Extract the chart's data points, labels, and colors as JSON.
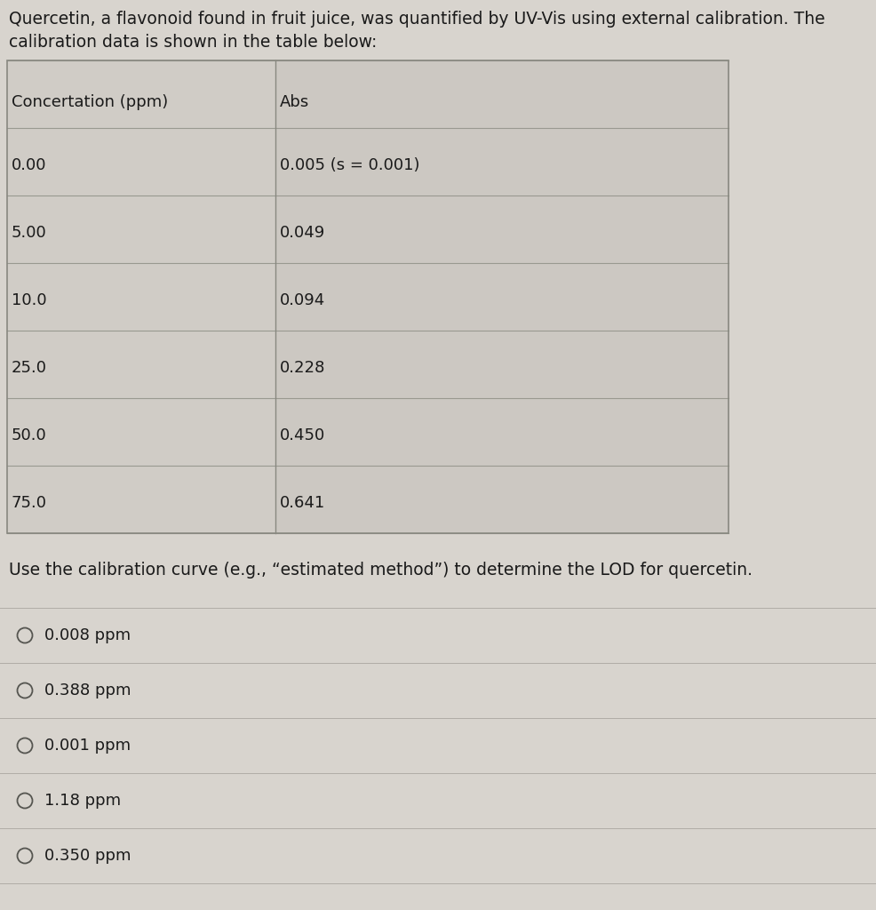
{
  "intro_text_line1": "Quercetin, a flavonoid found in fruit juice, was quantified by UV-Vis using external calibration. The",
  "intro_text_line2": "calibration data is shown in the table below:",
  "table_header": [
    "Concertation (ppm)",
    "Abs"
  ],
  "table_rows": [
    [
      "0.00",
      "0.005 (s = 0.001)"
    ],
    [
      "5.00",
      "0.049"
    ],
    [
      "10.0",
      "0.094"
    ],
    [
      "25.0",
      "0.228"
    ],
    [
      "50.0",
      "0.450"
    ],
    [
      "75.0",
      "0.641"
    ]
  ],
  "question_text": "Use the calibration curve (e.g., “estimated method”) to determine the LOD for quercetin.",
  "options": [
    "0.008 ppm",
    "0.388 ppm",
    "0.001 ppm",
    "1.18 ppm",
    "0.350 ppm"
  ],
  "bg_color": "#d8d4ce",
  "table_col1_bg": "#d0ccc6",
  "table_col2_bg": "#ccc8c2",
  "table_border_color": "#888880",
  "table_line_color": "#999990",
  "text_color": "#1a1a1a",
  "option_line_color": "#b0aca6",
  "font_size_intro": 13.5,
  "font_size_table": 13,
  "font_size_question": 13.5,
  "font_size_options": 13
}
